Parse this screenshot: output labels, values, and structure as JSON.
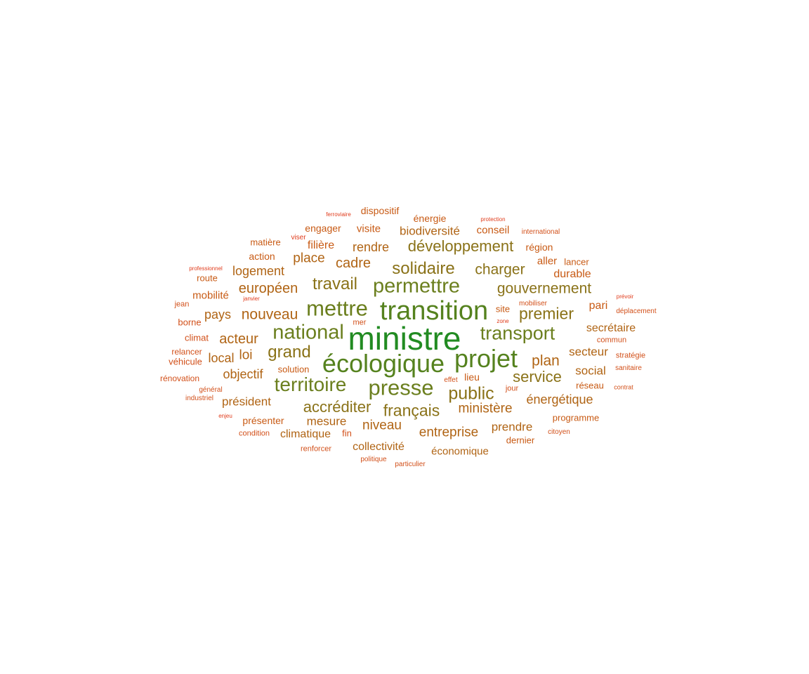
{
  "colors": {
    "tier1": "#228b22",
    "tier2": "#55821e",
    "tier3": "#6b7f1e",
    "tier4": "#8a7218",
    "tier5": "#b06414",
    "tier6": "#c85a14",
    "tier7": "#d2501a",
    "tier8": "#e03c1c"
  },
  "words": [
    {
      "text": "ministre",
      "tier": 1
    },
    {
      "text": "transition",
      "tier": 2
    },
    {
      "text": "écologique",
      "tier": 2
    },
    {
      "text": "projet",
      "tier": 2
    },
    {
      "text": "presse",
      "tier": 3
    },
    {
      "text": "mettre",
      "tier": 3
    },
    {
      "text": "national",
      "tier": 3
    },
    {
      "text": "permettre",
      "tier": 3
    },
    {
      "text": "territoire",
      "tier": 3
    },
    {
      "text": "transport",
      "tier": 3
    },
    {
      "text": "solidaire",
      "tier": 4
    },
    {
      "text": "développement",
      "tier": 4
    },
    {
      "text": "travail",
      "tier": 4
    },
    {
      "text": "gouvernement",
      "tier": 4
    },
    {
      "text": "public",
      "tier": 4
    },
    {
      "text": "grand",
      "tier": 4
    },
    {
      "text": "premier",
      "tier": 4
    },
    {
      "text": "charger",
      "tier": 4
    },
    {
      "text": "accréditer",
      "tier": 4
    },
    {
      "text": "français",
      "tier": 4
    },
    {
      "text": "service",
      "tier": 4
    },
    {
      "text": "nouveau",
      "tier": 5
    },
    {
      "text": "européen",
      "tier": 5
    },
    {
      "text": "cadre",
      "tier": 5
    },
    {
      "text": "acteur",
      "tier": 5
    },
    {
      "text": "plan",
      "tier": 5
    },
    {
      "text": "niveau",
      "tier": 5
    },
    {
      "text": "entreprise",
      "tier": 5
    },
    {
      "text": "ministère",
      "tier": 5
    },
    {
      "text": "énergétique",
      "tier": 5
    },
    {
      "text": "objectif",
      "tier": 5
    },
    {
      "text": "président",
      "tier": 5
    },
    {
      "text": "mesure",
      "tier": 5
    },
    {
      "text": "loi",
      "tier": 5
    },
    {
      "text": "logement",
      "tier": 5
    },
    {
      "text": "rendre",
      "tier": 5
    },
    {
      "text": "place",
      "tier": 5
    },
    {
      "text": "biodiversité",
      "tier": 5
    },
    {
      "text": "secrétaire",
      "tier": 5
    },
    {
      "text": "secteur",
      "tier": 5
    },
    {
      "text": "social",
      "tier": 5
    },
    {
      "text": "prendre",
      "tier": 5
    },
    {
      "text": "collectivité",
      "tier": 5
    },
    {
      "text": "climatique",
      "tier": 5
    },
    {
      "text": "économique",
      "tier": 5
    },
    {
      "text": "pays",
      "tier": 5
    },
    {
      "text": "local",
      "tier": 5
    },
    {
      "text": "durable",
      "tier": 6
    },
    {
      "text": "pari",
      "tier": 6
    },
    {
      "text": "filière",
      "tier": 6
    },
    {
      "text": "engager",
      "tier": 6
    },
    {
      "text": "visite",
      "tier": 6
    },
    {
      "text": "conseil",
      "tier": 6
    },
    {
      "text": "dispositif",
      "tier": 6
    },
    {
      "text": "énergie",
      "tier": 6
    },
    {
      "text": "région",
      "tier": 6
    },
    {
      "text": "aller",
      "tier": 6
    },
    {
      "text": "lancer",
      "tier": 6
    },
    {
      "text": "mobilité",
      "tier": 6
    },
    {
      "text": "action",
      "tier": 6
    },
    {
      "text": "matière",
      "tier": 6
    },
    {
      "text": "route",
      "tier": 6
    },
    {
      "text": "lieu",
      "tier": 6
    },
    {
      "text": "site",
      "tier": 6
    },
    {
      "text": "réseau",
      "tier": 6
    },
    {
      "text": "présenter",
      "tier": 6
    },
    {
      "text": "solution",
      "tier": 6
    },
    {
      "text": "programme",
      "tier": 6
    },
    {
      "text": "dernier",
      "tier": 6
    },
    {
      "text": "climat",
      "tier": 7
    },
    {
      "text": "borne",
      "tier": 7
    },
    {
      "text": "véhicule",
      "tier": 7
    },
    {
      "text": "relancer",
      "tier": 7
    },
    {
      "text": "rénovation",
      "tier": 7
    },
    {
      "text": "fin",
      "tier": 7
    },
    {
      "text": "condition",
      "tier": 7
    },
    {
      "text": "renforcer",
      "tier": 7
    },
    {
      "text": "politique",
      "tier": 7
    },
    {
      "text": "particulier",
      "tier": 7
    },
    {
      "text": "commun",
      "tier": 7
    },
    {
      "text": "stratégie",
      "tier": 7
    },
    {
      "text": "sanitaire",
      "tier": 7
    },
    {
      "text": "jour",
      "tier": 7
    },
    {
      "text": "mer",
      "tier": 7
    },
    {
      "text": "jean",
      "tier": 7
    },
    {
      "text": "déplacement",
      "tier": 7
    },
    {
      "text": "mobiliser",
      "tier": 7
    },
    {
      "text": "international",
      "tier": 7
    },
    {
      "text": "général",
      "tier": 7
    },
    {
      "text": "industriel",
      "tier": 7
    },
    {
      "text": "effet",
      "tier": 7
    },
    {
      "text": "citoyen",
      "tier": 7
    },
    {
      "text": "contrat",
      "tier": 7
    },
    {
      "text": "viser",
      "tier": 8
    },
    {
      "text": "ferroviaire",
      "tier": 8
    },
    {
      "text": "protection",
      "tier": 8
    },
    {
      "text": "professionnel",
      "tier": 8
    },
    {
      "text": "janvier",
      "tier": 8
    },
    {
      "text": "prévoir",
      "tier": 8
    },
    {
      "text": "zone",
      "tier": 8
    },
    {
      "text": "enjeu",
      "tier": 8
    }
  ]
}
